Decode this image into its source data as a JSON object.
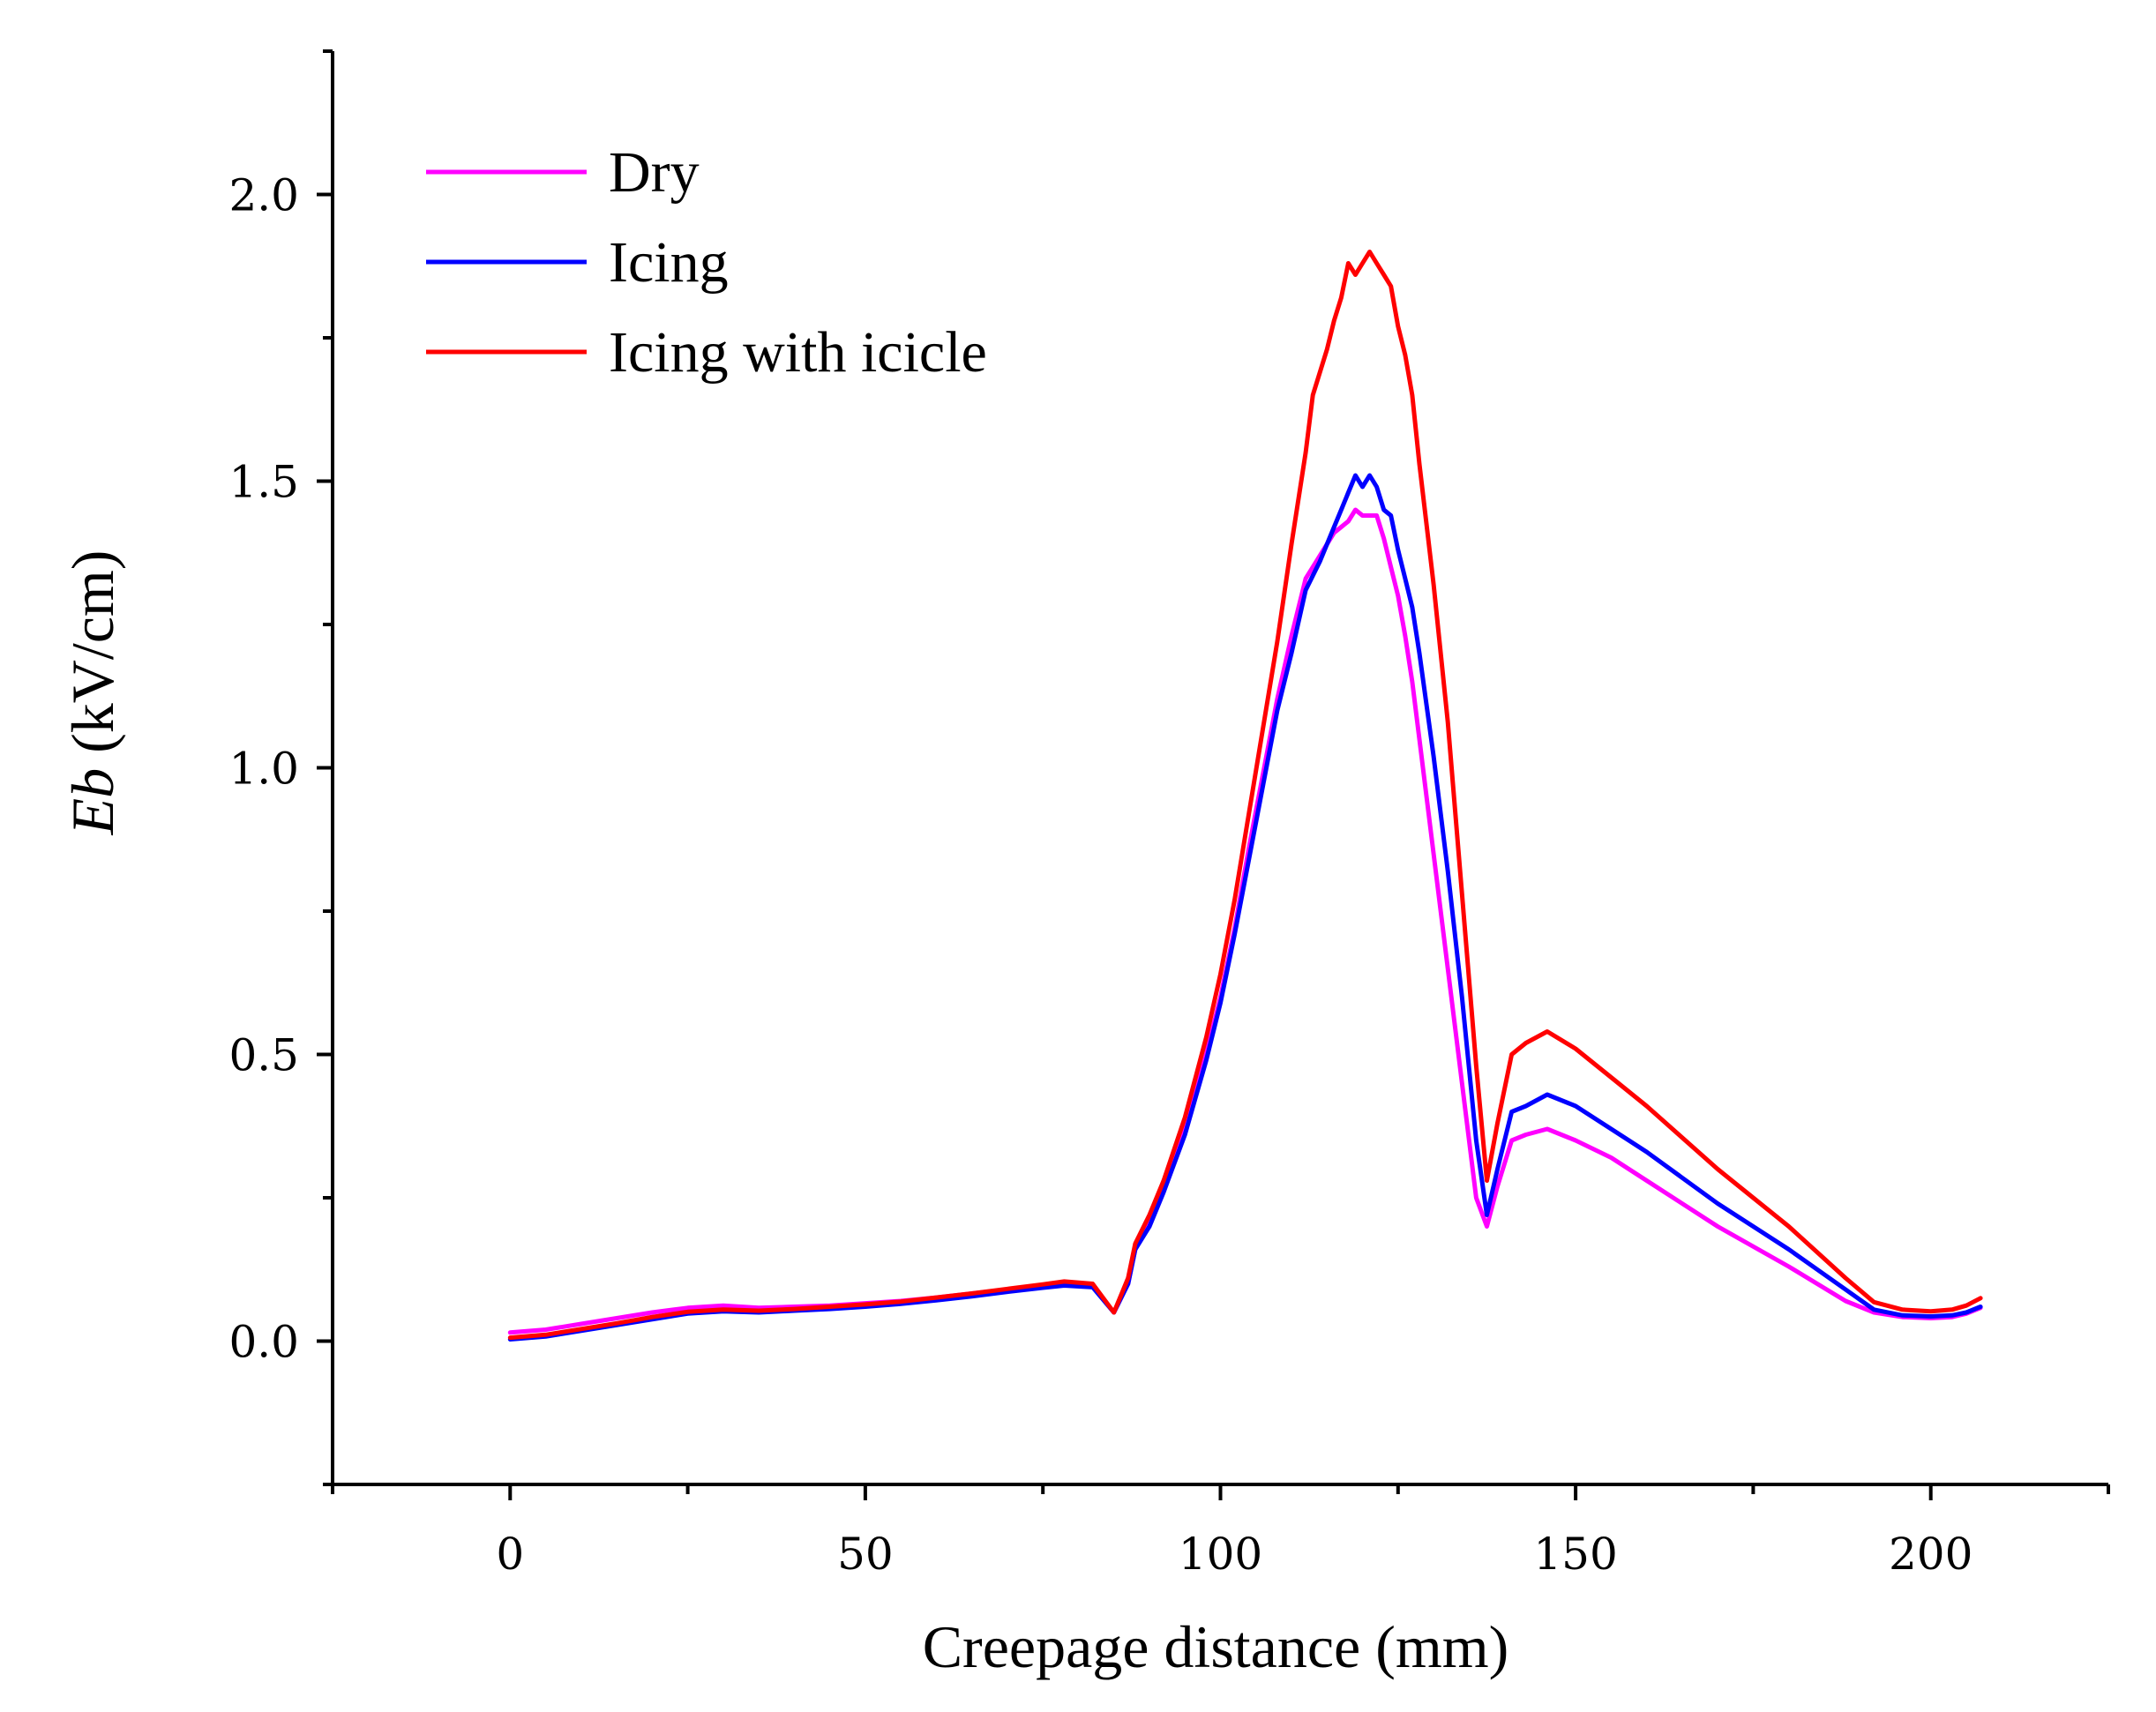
{
  "chart_data": {
    "type": "line",
    "title": "",
    "xlabel": "Creepage distance (mm)",
    "ylabel_italic": "Eb",
    "ylabel_rest": " (kV/cm)",
    "xlim": [
      -25,
      225
    ],
    "ylim": [
      -0.25,
      2.25
    ],
    "x_ticks": [
      0,
      50,
      100,
      150,
      200
    ],
    "x_tick_labels": [
      "0",
      "50",
      "100",
      "150",
      "200"
    ],
    "x_minor_ticks": [
      -25,
      25,
      75,
      125,
      175,
      225
    ],
    "y_ticks": [
      0.0,
      0.5,
      1.0,
      1.5,
      2.0
    ],
    "y_tick_labels": [
      "0.0",
      "0.5",
      "1.0",
      "1.5",
      "2.0"
    ],
    "y_minor_ticks": [
      -0.25,
      0.25,
      0.75,
      1.25,
      1.75,
      2.25
    ],
    "grid": false,
    "legend_position": "top-left",
    "series": [
      {
        "name": "Dry",
        "color": "#ff00ff",
        "points": [
          [
            0,
            0.015
          ],
          [
            5,
            0.02
          ],
          [
            10,
            0.03
          ],
          [
            15,
            0.04
          ],
          [
            20,
            0.05
          ],
          [
            25,
            0.058
          ],
          [
            30,
            0.062
          ],
          [
            35,
            0.058
          ],
          [
            40,
            0.06
          ],
          [
            45,
            0.062
          ],
          [
            50,
            0.066
          ],
          [
            55,
            0.07
          ],
          [
            60,
            0.076
          ],
          [
            65,
            0.083
          ],
          [
            70,
            0.09
          ],
          [
            75,
            0.097
          ],
          [
            78,
            0.1
          ],
          [
            82,
            0.097
          ],
          [
            85,
            0.05
          ],
          [
            87,
            0.1
          ],
          [
            88,
            0.16
          ],
          [
            90,
            0.21
          ],
          [
            92,
            0.27
          ],
          [
            95,
            0.37
          ],
          [
            98,
            0.5
          ],
          [
            100,
            0.6
          ],
          [
            102,
            0.72
          ],
          [
            104,
            0.86
          ],
          [
            106,
            0.99
          ],
          [
            108,
            1.12
          ],
          [
            110,
            1.23
          ],
          [
            112,
            1.33
          ],
          [
            114,
            1.37
          ],
          [
            116,
            1.41
          ],
          [
            117,
            1.42
          ],
          [
            118,
            1.43
          ],
          [
            119,
            1.45
          ],
          [
            120,
            1.44
          ],
          [
            121,
            1.44
          ],
          [
            122,
            1.44
          ],
          [
            123,
            1.4
          ],
          [
            124,
            1.35
          ],
          [
            125,
            1.3
          ],
          [
            126,
            1.23
          ],
          [
            127,
            1.15
          ],
          [
            128,
            1.05
          ],
          [
            130,
            0.85
          ],
          [
            132,
            0.65
          ],
          [
            134,
            0.45
          ],
          [
            136,
            0.25
          ],
          [
            137.5,
            0.2
          ],
          [
            139,
            0.27
          ],
          [
            141,
            0.35
          ],
          [
            143,
            0.36
          ],
          [
            146,
            0.37
          ],
          [
            150,
            0.35
          ],
          [
            155,
            0.32
          ],
          [
            160,
            0.28
          ],
          [
            170,
            0.2
          ],
          [
            180,
            0.13
          ],
          [
            188,
            0.07
          ],
          [
            192,
            0.05
          ],
          [
            196,
            0.042
          ],
          [
            200,
            0.04
          ],
          [
            203,
            0.042
          ],
          [
            205,
            0.048
          ],
          [
            207,
            0.058
          ]
        ]
      },
      {
        "name": "Icing",
        "color": "#0000ff",
        "points": [
          [
            0,
            0.003
          ],
          [
            5,
            0.008
          ],
          [
            10,
            0.018
          ],
          [
            15,
            0.028
          ],
          [
            20,
            0.038
          ],
          [
            25,
            0.048
          ],
          [
            30,
            0.052
          ],
          [
            35,
            0.05
          ],
          [
            40,
            0.053
          ],
          [
            45,
            0.056
          ],
          [
            50,
            0.06
          ],
          [
            55,
            0.065
          ],
          [
            60,
            0.071
          ],
          [
            65,
            0.078
          ],
          [
            70,
            0.086
          ],
          [
            75,
            0.093
          ],
          [
            78,
            0.097
          ],
          [
            82,
            0.094
          ],
          [
            85,
            0.05
          ],
          [
            87,
            0.1
          ],
          [
            88,
            0.16
          ],
          [
            90,
            0.2
          ],
          [
            92,
            0.26
          ],
          [
            95,
            0.36
          ],
          [
            98,
            0.49
          ],
          [
            100,
            0.59
          ],
          [
            102,
            0.71
          ],
          [
            104,
            0.84
          ],
          [
            106,
            0.97
          ],
          [
            108,
            1.1
          ],
          [
            110,
            1.2
          ],
          [
            112,
            1.31
          ],
          [
            114,
            1.36
          ],
          [
            116,
            1.42
          ],
          [
            117,
            1.45
          ],
          [
            118,
            1.48
          ],
          [
            119,
            1.51
          ],
          [
            120,
            1.49
          ],
          [
            121,
            1.51
          ],
          [
            122,
            1.49
          ],
          [
            123,
            1.45
          ],
          [
            124,
            1.44
          ],
          [
            125,
            1.38
          ],
          [
            126,
            1.33
          ],
          [
            127,
            1.28
          ],
          [
            128,
            1.2
          ],
          [
            130,
            1.02
          ],
          [
            132,
            0.82
          ],
          [
            134,
            0.6
          ],
          [
            136,
            0.35
          ],
          [
            137.5,
            0.22
          ],
          [
            139,
            0.3
          ],
          [
            141,
            0.4
          ],
          [
            143,
            0.41
          ],
          [
            146,
            0.43
          ],
          [
            150,
            0.41
          ],
          [
            155,
            0.37
          ],
          [
            160,
            0.33
          ],
          [
            170,
            0.24
          ],
          [
            180,
            0.16
          ],
          [
            188,
            0.09
          ],
          [
            192,
            0.055
          ],
          [
            196,
            0.045
          ],
          [
            200,
            0.043
          ],
          [
            203,
            0.045
          ],
          [
            205,
            0.05
          ],
          [
            207,
            0.06
          ]
        ]
      },
      {
        "name": "Icing with icicle",
        "color": "#ff0000",
        "points": [
          [
            0,
            0.006
          ],
          [
            5,
            0.011
          ],
          [
            10,
            0.021
          ],
          [
            15,
            0.031
          ],
          [
            20,
            0.042
          ],
          [
            25,
            0.051
          ],
          [
            30,
            0.055
          ],
          [
            35,
            0.053
          ],
          [
            40,
            0.056
          ],
          [
            45,
            0.06
          ],
          [
            50,
            0.064
          ],
          [
            55,
            0.069
          ],
          [
            60,
            0.076
          ],
          [
            65,
            0.083
          ],
          [
            70,
            0.091
          ],
          [
            75,
            0.099
          ],
          [
            78,
            0.104
          ],
          [
            82,
            0.1
          ],
          [
            85,
            0.05
          ],
          [
            87,
            0.11
          ],
          [
            88,
            0.17
          ],
          [
            90,
            0.22
          ],
          [
            92,
            0.28
          ],
          [
            95,
            0.39
          ],
          [
            98,
            0.53
          ],
          [
            100,
            0.64
          ],
          [
            102,
            0.77
          ],
          [
            104,
            0.92
          ],
          [
            106,
            1.07
          ],
          [
            108,
            1.22
          ],
          [
            110,
            1.39
          ],
          [
            112,
            1.55
          ],
          [
            113,
            1.65
          ],
          [
            115,
            1.73
          ],
          [
            116,
            1.78
          ],
          [
            117,
            1.82
          ],
          [
            118,
            1.88
          ],
          [
            119,
            1.86
          ],
          [
            120,
            1.88
          ],
          [
            121,
            1.9
          ],
          [
            122,
            1.88
          ],
          [
            123,
            1.86
          ],
          [
            124,
            1.84
          ],
          [
            125,
            1.77
          ],
          [
            126,
            1.72
          ],
          [
            127,
            1.65
          ],
          [
            128,
            1.53
          ],
          [
            130,
            1.32
          ],
          [
            132,
            1.08
          ],
          [
            134,
            0.78
          ],
          [
            136,
            0.48
          ],
          [
            137.5,
            0.28
          ],
          [
            139,
            0.38
          ],
          [
            141,
            0.5
          ],
          [
            143,
            0.52
          ],
          [
            146,
            0.54
          ],
          [
            150,
            0.51
          ],
          [
            155,
            0.46
          ],
          [
            160,
            0.41
          ],
          [
            170,
            0.3
          ],
          [
            180,
            0.2
          ],
          [
            188,
            0.11
          ],
          [
            192,
            0.068
          ],
          [
            196,
            0.055
          ],
          [
            200,
            0.052
          ],
          [
            203,
            0.055
          ],
          [
            205,
            0.062
          ],
          [
            207,
            0.075
          ]
        ]
      }
    ]
  }
}
